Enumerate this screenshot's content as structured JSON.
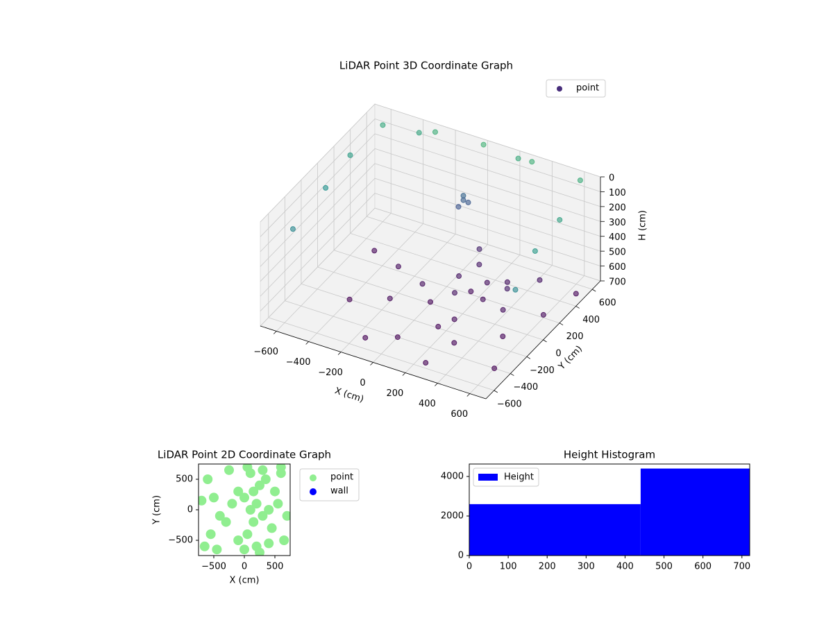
{
  "chart_data": [
    {
      "type": "scatter3d",
      "title": "LiDAR Point 3D Coordinate Graph",
      "xlabel": "X (cm)",
      "ylabel": "Y (cm)",
      "zlabel": "H (cm)",
      "xlim": [
        -700,
        700
      ],
      "ylim": [
        -700,
        700
      ],
      "zlim": [
        700,
        0
      ],
      "xticks": [
        {
          "value": -600,
          "label": "−600"
        },
        {
          "value": -400,
          "label": "−400"
        },
        {
          "value": -200,
          "label": "−200"
        },
        0,
        200,
        400,
        600
      ],
      "yticks": [
        {
          "value": -600,
          "label": "−600"
        },
        {
          "value": -400,
          "label": "−400"
        },
        {
          "value": -200,
          "label": "−200"
        },
        0,
        200,
        400,
        600
      ],
      "zticks": [
        0,
        100,
        200,
        300,
        400,
        500,
        600,
        700
      ],
      "grid": true,
      "legend": "upper right",
      "colormap": "viridis",
      "series": [
        {
          "name": "point",
          "color": "#472d7b",
          "x": [
            100,
            150,
            200,
            50,
            250,
            0,
            300,
            100,
            -100,
            200,
            350,
            150,
            -200,
            400,
            -300,
            50,
            300,
            -400,
            500,
            600,
            -500,
            450,
            0,
            -150,
            250,
            600,
            650,
            -100,
            -100,
            -80,
            -120,
            -600,
            -300,
            0,
            300,
            600,
            650,
            650,
            -650,
            -650,
            -400,
            200,
            680,
            -650
          ],
          "y": [
            100,
            200,
            300,
            250,
            150,
            0,
            350,
            400,
            100,
            -100,
            250,
            -200,
            -100,
            100,
            200,
            500,
            -300,
            -200,
            -100,
            200,
            300,
            450,
            -400,
            -500,
            -550,
            -400,
            500,
            600,
            600,
            620,
            580,
            600,
            650,
            650,
            650,
            650,
            300,
            0,
            0,
            -400,
            650,
            680,
            -300,
            300
          ],
          "z": [
            650,
            680,
            660,
            640,
            670,
            690,
            650,
            630,
            660,
            680,
            620,
            690,
            680,
            660,
            670,
            600,
            690,
            700,
            690,
            680,
            690,
            640,
            700,
            700,
            700,
            700,
            690,
            350,
            380,
            400,
            420,
            50,
            20,
            0,
            10,
            30,
            80,
            120,
            150,
            200,
            60,
            40,
            200,
            100
          ]
        }
      ]
    },
    {
      "type": "scatter",
      "title": "LiDAR Point 2D Coordinate Graph",
      "xlabel": "X (cm)",
      "ylabel": "Y (cm)",
      "xlim": [
        -750,
        750
      ],
      "ylim": [
        -750,
        750
      ],
      "xticks": [
        {
          "value": -500,
          "label": "−500"
        },
        0,
        500
      ],
      "yticks": [
        {
          "value": -500,
          "label": "−500"
        },
        0,
        500
      ],
      "legend": "outside right",
      "series": [
        {
          "name": "point",
          "color": "#90ee90",
          "x": [
            100,
            200,
            0,
            300,
            -100,
            150,
            250,
            50,
            400,
            350,
            -200,
            500,
            450,
            -300,
            600,
            650,
            -600,
            -650,
            -500,
            -400,
            100,
            200,
            300,
            -100,
            0,
            550,
            -550,
            -700,
            700,
            250,
            -250,
            150,
            400,
            -450,
            50,
            600
          ],
          "y": [
            0,
            100,
            200,
            -100,
            300,
            -200,
            400,
            -400,
            0,
            500,
            100,
            300,
            -300,
            -200,
            600,
            -500,
            500,
            -600,
            200,
            -100,
            600,
            -600,
            650,
            -500,
            -650,
            100,
            -400,
            150,
            -100,
            -700,
            650,
            300,
            -550,
            -650,
            700,
            700
          ]
        },
        {
          "name": "wall",
          "color": "#0000ff",
          "x": [],
          "y": []
        }
      ]
    },
    {
      "type": "histogram",
      "title": "Height Histogram",
      "bins": [
        0,
        440,
        720
      ],
      "values": [
        2600,
        4400
      ],
      "xlim": [
        0,
        720
      ],
      "ylim": [
        0,
        4630
      ],
      "xticks": [
        0,
        100,
        200,
        300,
        400,
        500,
        600,
        700
      ],
      "yticks": [
        0,
        2000,
        4000
      ],
      "legend": "upper left",
      "series_name": "Height",
      "color": "#0000ff"
    }
  ]
}
